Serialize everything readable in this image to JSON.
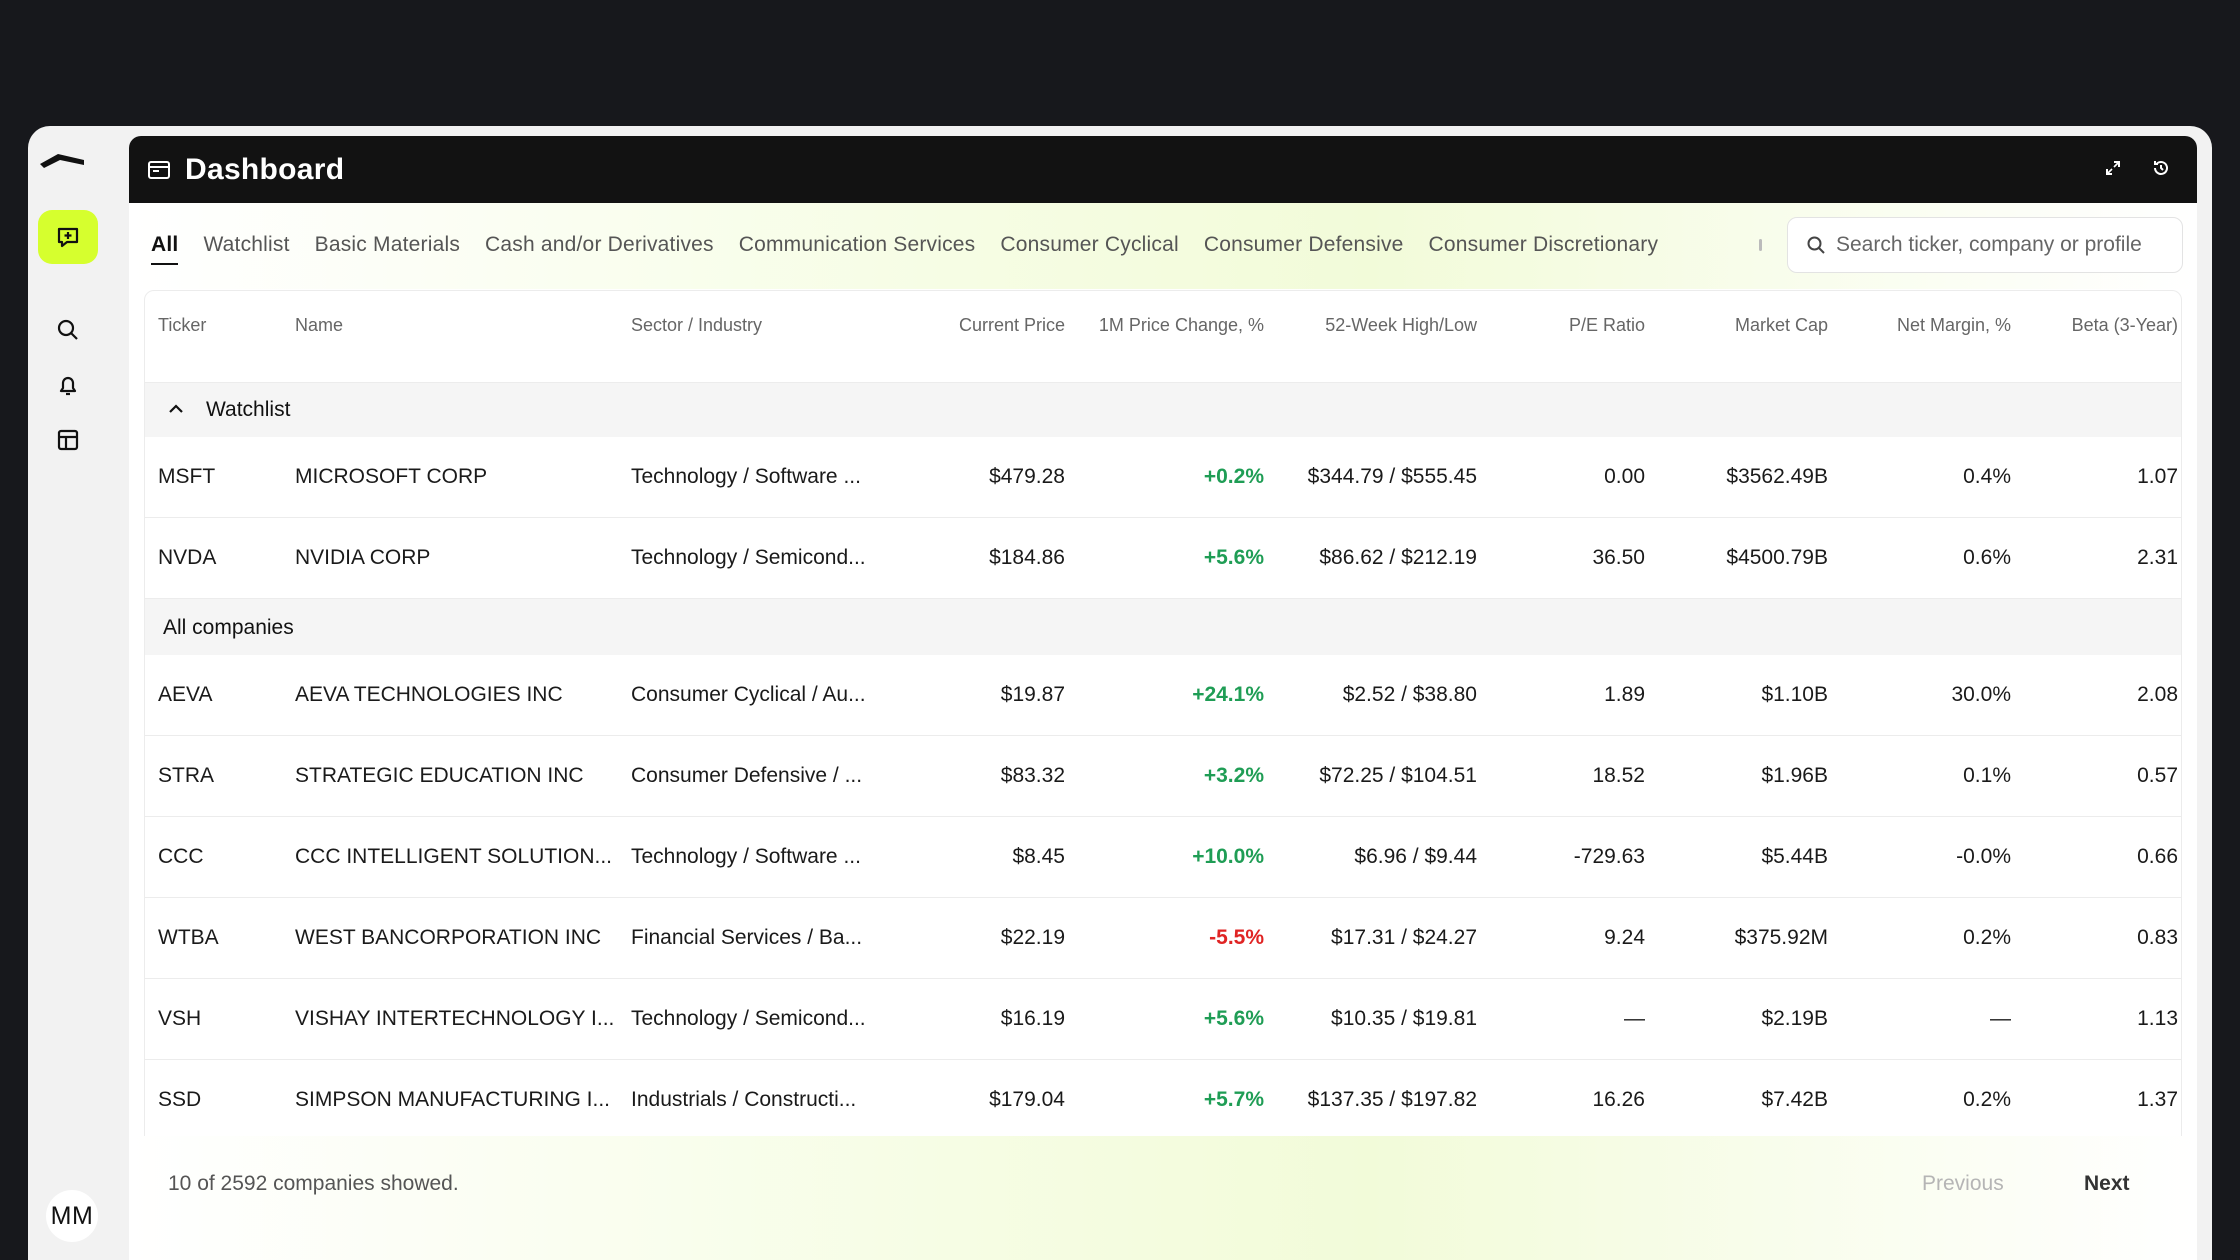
{
  "header": {
    "title": "Dashboard"
  },
  "tabs": [
    {
      "label": "All",
      "active": true
    },
    {
      "label": "Watchlist"
    },
    {
      "label": "Basic Materials"
    },
    {
      "label": "Cash and/or Derivatives"
    },
    {
      "label": "Communication Services"
    },
    {
      "label": "Consumer Cyclical"
    },
    {
      "label": "Consumer Defensive"
    },
    {
      "label": "Consumer Discretionary"
    }
  ],
  "search": {
    "placeholder": "Search ticker, company or profile"
  },
  "sidebar": {
    "icons": [
      "logo-icon",
      "new-chat-icon",
      "search-icon",
      "bell-icon",
      "table-icon"
    ],
    "user_initials": "MM",
    "accent_color": "#d6ff2e"
  },
  "table": {
    "columns": [
      "Ticker",
      "Name",
      "Sector / Industry",
      "Current Price",
      "1M Price Change, %",
      "52-Week High/Low",
      "P/E Ratio",
      "Market Cap",
      "Net Margin, %",
      "Beta (3-Year)"
    ],
    "groups": {
      "watchlist": "Watchlist",
      "all": "All companies"
    },
    "watchlist_rows": [
      {
        "ticker": "MSFT",
        "name": "MICROSOFT CORP",
        "sector": "Technology / Software ...",
        "price": "$479.28",
        "change": "+0.2%",
        "dir": "pos",
        "hilo": "$344.79 / $555.45",
        "pe": "0.00",
        "cap": "$3562.49B",
        "margin": "0.4%",
        "beta": "1.07"
      },
      {
        "ticker": "NVDA",
        "name": "NVIDIA CORP",
        "sector": "Technology / Semicond...",
        "price": "$184.86",
        "change": "+5.6%",
        "dir": "pos",
        "hilo": "$86.62 / $212.19",
        "pe": "36.50",
        "cap": "$4500.79B",
        "margin": "0.6%",
        "beta": "2.31"
      }
    ],
    "all_rows": [
      {
        "ticker": "AEVA",
        "name": "AEVA TECHNOLOGIES INC",
        "sector": "Consumer Cyclical / Au...",
        "price": "$19.87",
        "change": "+24.1%",
        "dir": "pos",
        "hilo": "$2.52 / $38.80",
        "pe": "1.89",
        "cap": "$1.10B",
        "margin": "30.0%",
        "beta": "2.08"
      },
      {
        "ticker": "STRA",
        "name": "STRATEGIC EDUCATION INC",
        "sector": "Consumer Defensive / ...",
        "price": "$83.32",
        "change": "+3.2%",
        "dir": "pos",
        "hilo": "$72.25 / $104.51",
        "pe": "18.52",
        "cap": "$1.96B",
        "margin": "0.1%",
        "beta": "0.57"
      },
      {
        "ticker": "CCC",
        "name": "CCC INTELLIGENT SOLUTION...",
        "sector": "Technology / Software ...",
        "price": "$8.45",
        "change": "+10.0%",
        "dir": "pos",
        "hilo": "$6.96 / $9.44",
        "pe": "-729.63",
        "cap": "$5.44B",
        "margin": "-0.0%",
        "beta": "0.66"
      },
      {
        "ticker": "WTBA",
        "name": "WEST BANCORPORATION INC",
        "sector": "Financial Services / Ba...",
        "price": "$22.19",
        "change": "-5.5%",
        "dir": "neg",
        "hilo": "$17.31 / $24.27",
        "pe": "9.24",
        "cap": "$375.92M",
        "margin": "0.2%",
        "beta": "0.83"
      },
      {
        "ticker": "VSH",
        "name": "VISHAY INTERTECHNOLOGY I...",
        "sector": "Technology / Semicond...",
        "price": "$16.19",
        "change": "+5.6%",
        "dir": "pos",
        "hilo": "$10.35 / $19.81",
        "pe": "—",
        "cap": "$2.19B",
        "margin": "—",
        "beta": "1.13"
      },
      {
        "ticker": "SSD",
        "name": "SIMPSON MANUFACTURING I...",
        "sector": "Industrials / Constructi...",
        "price": "$179.04",
        "change": "+5.7%",
        "dir": "pos",
        "hilo": "$137.35 / $197.82",
        "pe": "16.26",
        "cap": "$7.42B",
        "margin": "0.2%",
        "beta": "1.37"
      }
    ]
  },
  "footer": {
    "count": "10 of 2592 companies showed.",
    "prev": "Previous",
    "next": "Next"
  },
  "colors": {
    "positive": "#1f9d55",
    "negative": "#e02424",
    "header_bg": "#121212"
  }
}
